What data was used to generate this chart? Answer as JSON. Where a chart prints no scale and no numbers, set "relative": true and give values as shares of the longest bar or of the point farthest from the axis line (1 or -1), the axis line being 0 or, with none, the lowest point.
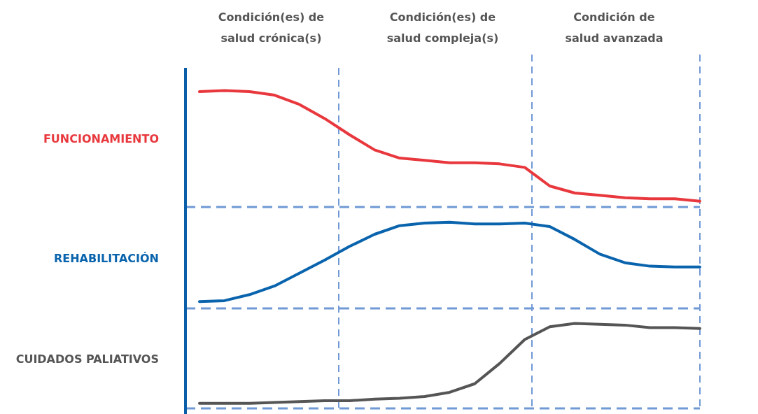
{
  "chart_data": [
    {
      "type": "line",
      "ylabel": "FUNCIONAMIENTO",
      "relative": true,
      "annotations": [
        "Condición(es) de\nsalud crónica(s)",
        "Condición(es) de\nsalud compleja(s)",
        "Condición de\nsalud avanzada"
      ],
      "categories": [
        null,
        null,
        null,
        null,
        null,
        null,
        null,
        null,
        null,
        null,
        null,
        null,
        null,
        null,
        null,
        null,
        null,
        null,
        null,
        null,
        null
      ],
      "series": [
        {
          "color": "#e8383d",
          "values": [
            0.99,
            1,
            0.99,
            0.96,
            0.88,
            0.76,
            0.62,
            0.49,
            0.42,
            0.4,
            0.38,
            0.38,
            0.37,
            0.34,
            0.18,
            0.12,
            0.1,
            0.08,
            0.07,
            0.07,
            0.05
          ]
        }
      ]
    },
    {
      "type": "line",
      "ylabel": "REHABILITACIÓN",
      "relative": true,
      "categories": [
        null,
        null,
        null,
        null,
        null,
        null,
        null,
        null,
        null,
        null,
        null,
        null,
        null,
        null,
        null,
        null,
        null,
        null,
        null,
        null,
        null
      ],
      "series": [
        {
          "color": "#0a64ad",
          "values": [
            0.08,
            0.09,
            0.16,
            0.26,
            0.41,
            0.56,
            0.72,
            0.86,
            0.96,
            0.99,
            1,
            0.98,
            0.98,
            0.99,
            0.95,
            0.8,
            0.63,
            0.53,
            0.49,
            0.48,
            0.48
          ]
        }
      ]
    },
    {
      "type": "line",
      "ylabel": "CUIDADOS PALIATIVOS",
      "relative": true,
      "categories": [
        null,
        null,
        null,
        null,
        null,
        null,
        null,
        null,
        null,
        null,
        null,
        null,
        null,
        null,
        null,
        null,
        null,
        null,
        null,
        null,
        null
      ],
      "series": [
        {
          "color": "#555555",
          "values": [
            0.06,
            0.06,
            0.06,
            0.07,
            0.08,
            0.09,
            0.09,
            0.11,
            0.12,
            0.14,
            0.19,
            0.29,
            0.53,
            0.81,
            0.96,
            1,
            0.99,
            0.98,
            0.95,
            0.95,
            0.94
          ]
        }
      ]
    }
  ]
}
